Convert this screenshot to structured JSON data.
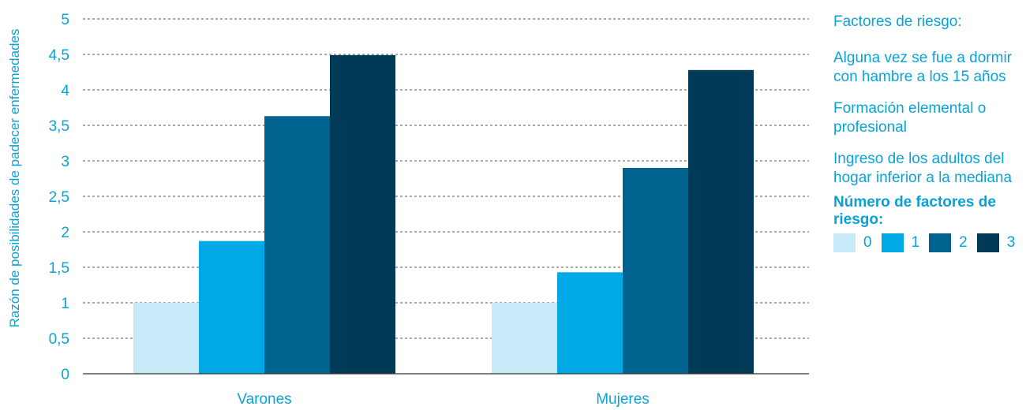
{
  "chart_data": {
    "type": "bar",
    "ylabel": "Razón de posibilidades de padecer enfermedades",
    "ylim": [
      0,
      5
    ],
    "y_ticks": [
      "0",
      "0,5",
      "1",
      "1,5",
      "2",
      "2,5",
      "3",
      "3,5",
      "4",
      "4,5",
      "5"
    ],
    "grid": true,
    "categories": [
      "Varones",
      "Mujeres"
    ],
    "series": [
      {
        "name": "0",
        "values": [
          1.0,
          1.0
        ],
        "color": "#c8e9f7"
      },
      {
        "name": "1",
        "values": [
          1.87,
          1.43
        ],
        "color": "#00a8e6"
      },
      {
        "name": "2",
        "values": [
          3.63,
          2.9
        ],
        "color": "#00628f"
      },
      {
        "name": "3",
        "values": [
          4.49,
          4.28
        ],
        "color": "#003a57"
      }
    ],
    "legend_placement": "right"
  },
  "side_panel": {
    "title": "Factores de riesgo:",
    "factors": [
      "Alguna vez se fue a dormir con hambre a los 15 años",
      "Formación elemental o profesional",
      "Ingreso de los adultos del hogar inferior a la mediana"
    ],
    "count_title": "Número de factores de riesgo:"
  },
  "colors": {
    "text": "#0aa3d8",
    "grid": "#555555",
    "axis": "#333333"
  }
}
